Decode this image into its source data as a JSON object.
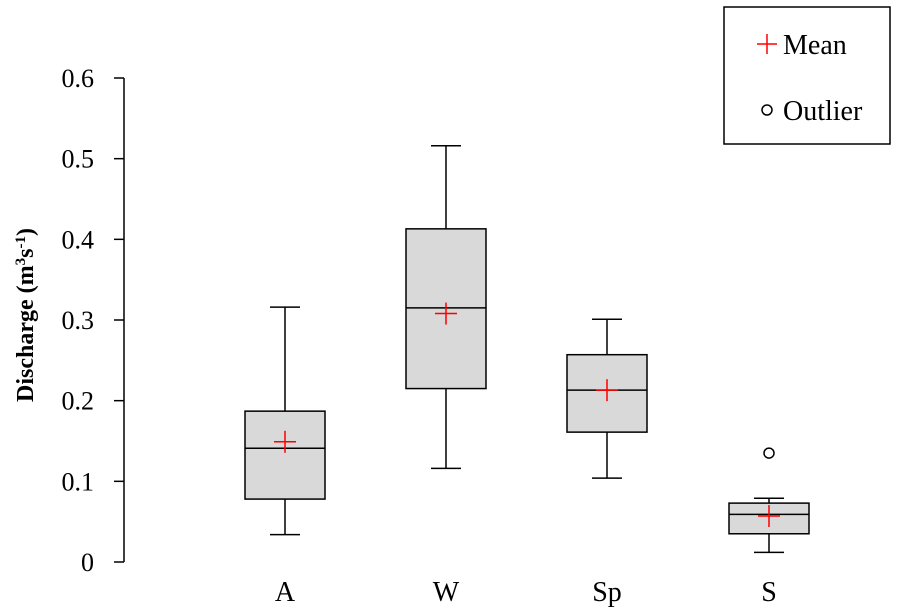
{
  "chart_data": {
    "type": "box",
    "ylabel": "Discharge",
    "ylabel_unit_base": "(m",
    "ylabel_unit_sup1": "3",
    "ylabel_unit_mid": "s",
    "ylabel_unit_sup2": "-1",
    "ylabel_unit_end": ")",
    "ylim": [
      0,
      0.6
    ],
    "yticks": [
      0,
      0.1,
      0.2,
      0.3,
      0.4,
      0.5,
      0.6
    ],
    "ytick_labels": [
      "0",
      "0.1",
      "0.2",
      "0.3",
      "0.4",
      "0.5",
      "0.6"
    ],
    "categories": [
      "A",
      "W",
      "Sp",
      "S"
    ],
    "boxes": [
      {
        "category": "A",
        "whisker_low": 0.034,
        "q1": 0.078,
        "median": 0.141,
        "q3": 0.187,
        "whisker_high": 0.316,
        "mean": 0.149,
        "outliers": []
      },
      {
        "category": "W",
        "whisker_low": 0.116,
        "q1": 0.215,
        "median": 0.315,
        "q3": 0.413,
        "whisker_high": 0.516,
        "mean": 0.308,
        "outliers": []
      },
      {
        "category": "Sp",
        "whisker_low": 0.104,
        "q1": 0.161,
        "median": 0.213,
        "q3": 0.257,
        "whisker_high": 0.301,
        "mean": 0.213,
        "outliers": []
      },
      {
        "category": "S",
        "whisker_low": 0.012,
        "q1": 0.035,
        "median": 0.059,
        "q3": 0.073,
        "whisker_high": 0.079,
        "mean": 0.057,
        "outliers": [
          0.135
        ]
      }
    ],
    "legend": {
      "position": "top-right",
      "entries": [
        {
          "label": "Mean",
          "marker": "plus"
        },
        {
          "label": "Outlier",
          "marker": "circle"
        }
      ]
    },
    "colors": {
      "box_fill": "#d9d9d9",
      "mean_marker": "#ff0000",
      "lines": "#000000"
    },
    "grid": false
  }
}
